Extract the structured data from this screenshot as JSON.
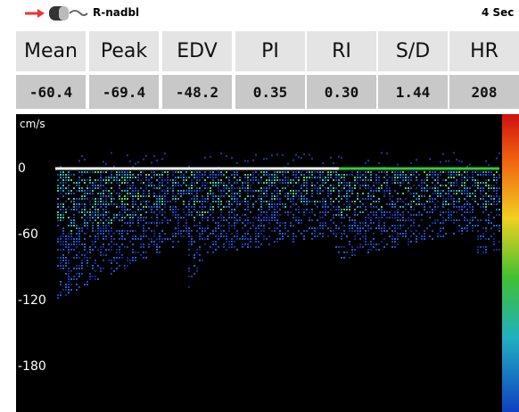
{
  "header": {
    "label": "R-nadbl",
    "time": "4 Sec"
  },
  "table": {
    "columns": [
      "Mean",
      "Peak",
      "EDV",
      "PI",
      "RI",
      "S/D",
      "HR"
    ],
    "values": [
      "-60.4",
      "-69.4",
      "-48.2",
      "0.35",
      "0.30",
      "1.44",
      "208"
    ]
  },
  "axis": {
    "unit": "cm/s",
    "ticks": [
      0,
      -60,
      -120,
      -180
    ]
  }
}
